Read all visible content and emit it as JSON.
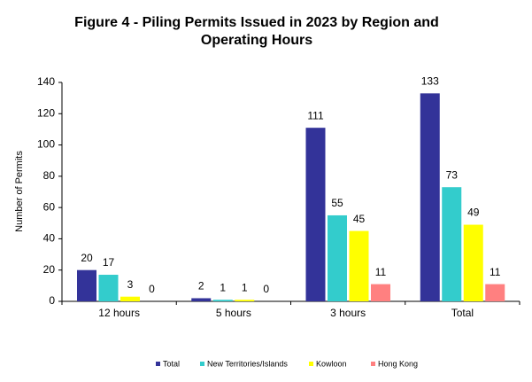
{
  "chart_data": {
    "type": "bar",
    "title": "Figure 4 - Piling Permits Issued in 2023 by Region and Operating Hours",
    "y_label": "Number of Permits",
    "categories": [
      "12 hours",
      "5 hours",
      "3 hours",
      "Total"
    ],
    "series": [
      {
        "name": "Total",
        "color": "#333399",
        "values": [
          20,
          2,
          111,
          133
        ]
      },
      {
        "name": "New Territories/Islands",
        "color": "#33cccc",
        "values": [
          17,
          1,
          55,
          73
        ]
      },
      {
        "name": "Kowloon",
        "color": "#ffff00",
        "values": [
          3,
          1,
          45,
          49
        ]
      },
      {
        "name": "Hong Kong",
        "color": "#ff8080",
        "values": [
          0,
          0,
          11,
          11
        ]
      }
    ],
    "ylim": [
      0,
      140
    ],
    "yticks": [
      0,
      20,
      40,
      60,
      80,
      100,
      120,
      140
    ],
    "legend": "bottom"
  }
}
